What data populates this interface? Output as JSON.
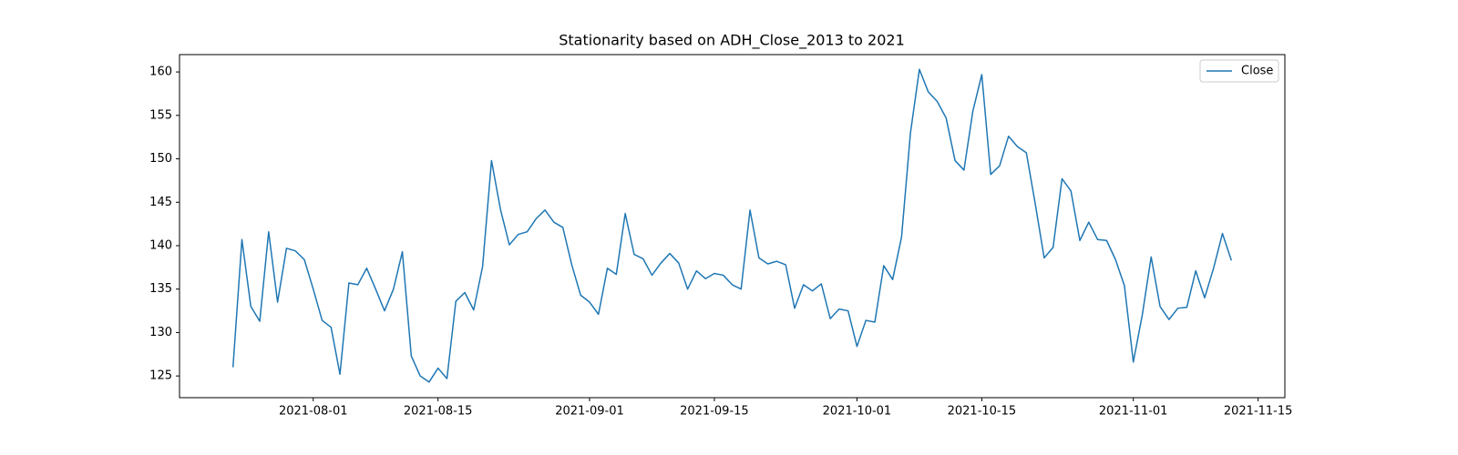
{
  "chart_data": {
    "type": "line",
    "title": "Stationarity based on ADH_Close_2013 to 2021",
    "x": [
      "2021-07-23",
      "2021-07-24",
      "2021-07-25",
      "2021-07-26",
      "2021-07-27",
      "2021-07-28",
      "2021-07-29",
      "2021-07-30",
      "2021-07-31",
      "2021-08-01",
      "2021-08-02",
      "2021-08-03",
      "2021-08-04",
      "2021-08-05",
      "2021-08-06",
      "2021-08-07",
      "2021-08-08",
      "2021-08-09",
      "2021-08-10",
      "2021-08-11",
      "2021-08-12",
      "2021-08-13",
      "2021-08-14",
      "2021-08-15",
      "2021-08-16",
      "2021-08-17",
      "2021-08-18",
      "2021-08-19",
      "2021-08-20",
      "2021-08-21",
      "2021-08-22",
      "2021-08-23",
      "2021-08-24",
      "2021-08-25",
      "2021-08-26",
      "2021-08-27",
      "2021-08-28",
      "2021-08-29",
      "2021-08-30",
      "2021-08-31",
      "2021-09-01",
      "2021-09-02",
      "2021-09-03",
      "2021-09-04",
      "2021-09-05",
      "2021-09-06",
      "2021-09-07",
      "2021-09-08",
      "2021-09-09",
      "2021-09-10",
      "2021-09-11",
      "2021-09-12",
      "2021-09-13",
      "2021-09-14",
      "2021-09-15",
      "2021-09-16",
      "2021-09-17",
      "2021-09-18",
      "2021-09-19",
      "2021-09-20",
      "2021-09-21",
      "2021-09-22",
      "2021-09-23",
      "2021-09-24",
      "2021-09-25",
      "2021-09-26",
      "2021-09-27",
      "2021-09-28",
      "2021-09-29",
      "2021-09-30",
      "2021-10-01",
      "2021-10-02",
      "2021-10-03",
      "2021-10-04",
      "2021-10-05",
      "2021-10-06",
      "2021-10-07",
      "2021-10-08",
      "2021-10-09",
      "2021-10-10",
      "2021-10-11",
      "2021-10-12",
      "2021-10-13",
      "2021-10-14",
      "2021-10-15",
      "2021-10-16",
      "2021-10-17",
      "2021-10-18",
      "2021-10-19",
      "2021-10-20",
      "2021-10-21",
      "2021-10-22",
      "2021-10-23",
      "2021-10-24",
      "2021-10-25",
      "2021-10-26",
      "2021-10-27",
      "2021-10-28",
      "2021-10-29",
      "2021-10-30",
      "2021-10-31",
      "2021-11-01",
      "2021-11-02",
      "2021-11-03",
      "2021-11-04",
      "2021-11-05",
      "2021-11-06",
      "2021-11-07",
      "2021-11-08",
      "2021-11-09",
      "2021-11-10",
      "2021-11-11",
      "2021-11-12"
    ],
    "series": [
      {
        "name": "Close",
        "color": "#1f77b4",
        "values": [
          126,
          140.7,
          133,
          131.3,
          141.6,
          133.5,
          139.7,
          139.4,
          138.4,
          135,
          131.4,
          130.6,
          125.2,
          135.7,
          135.5,
          137.4,
          135,
          132.5,
          135,
          139.3,
          127.3,
          125,
          124.3,
          125.9,
          124.7,
          133.6,
          134.6,
          132.6,
          137.6,
          149.8,
          144.2,
          140.1,
          141.3,
          141.6,
          143.1,
          144.1,
          142.7,
          142.1,
          137.8,
          134.3,
          133.5,
          132.1,
          137.4,
          136.7,
          143.7,
          139,
          138.5,
          136.6,
          138,
          139.1,
          138,
          135,
          137.1,
          136.2,
          136.8,
          136.6,
          135.5,
          135,
          144.1,
          138.6,
          137.9,
          138.2,
          137.8,
          132.8,
          135.5,
          134.8,
          135.6,
          131.6,
          132.7,
          132.5,
          128.4,
          131.4,
          131.2,
          137.7,
          136.1,
          141,
          153,
          160.3,
          157.7,
          156.6,
          154.7,
          149.8,
          148.7,
          155.5,
          159.7,
          148.2,
          149.2,
          152.6,
          151.4,
          150.7,
          144.8,
          138.6,
          139.8,
          147.7,
          146.3,
          140.6,
          142.7,
          140.7,
          140.6,
          138.4,
          135.4,
          126.6,
          132,
          138.7,
          133,
          131.5,
          132.8,
          132.9,
          137.1,
          134,
          137.4,
          141.4,
          138.3
        ]
      }
    ],
    "xlim": [
      "2021-07-17",
      "2021-11-18"
    ],
    "xticks": [
      "2021-08-01",
      "2021-08-15",
      "2021-09-01",
      "2021-09-15",
      "2021-10-01",
      "2021-10-15",
      "2021-11-01",
      "2021-11-15"
    ],
    "ylim": [
      122.5,
      162
    ],
    "yticks": [
      125,
      130,
      135,
      140,
      145,
      150,
      155,
      160
    ],
    "legend": "upper right"
  }
}
